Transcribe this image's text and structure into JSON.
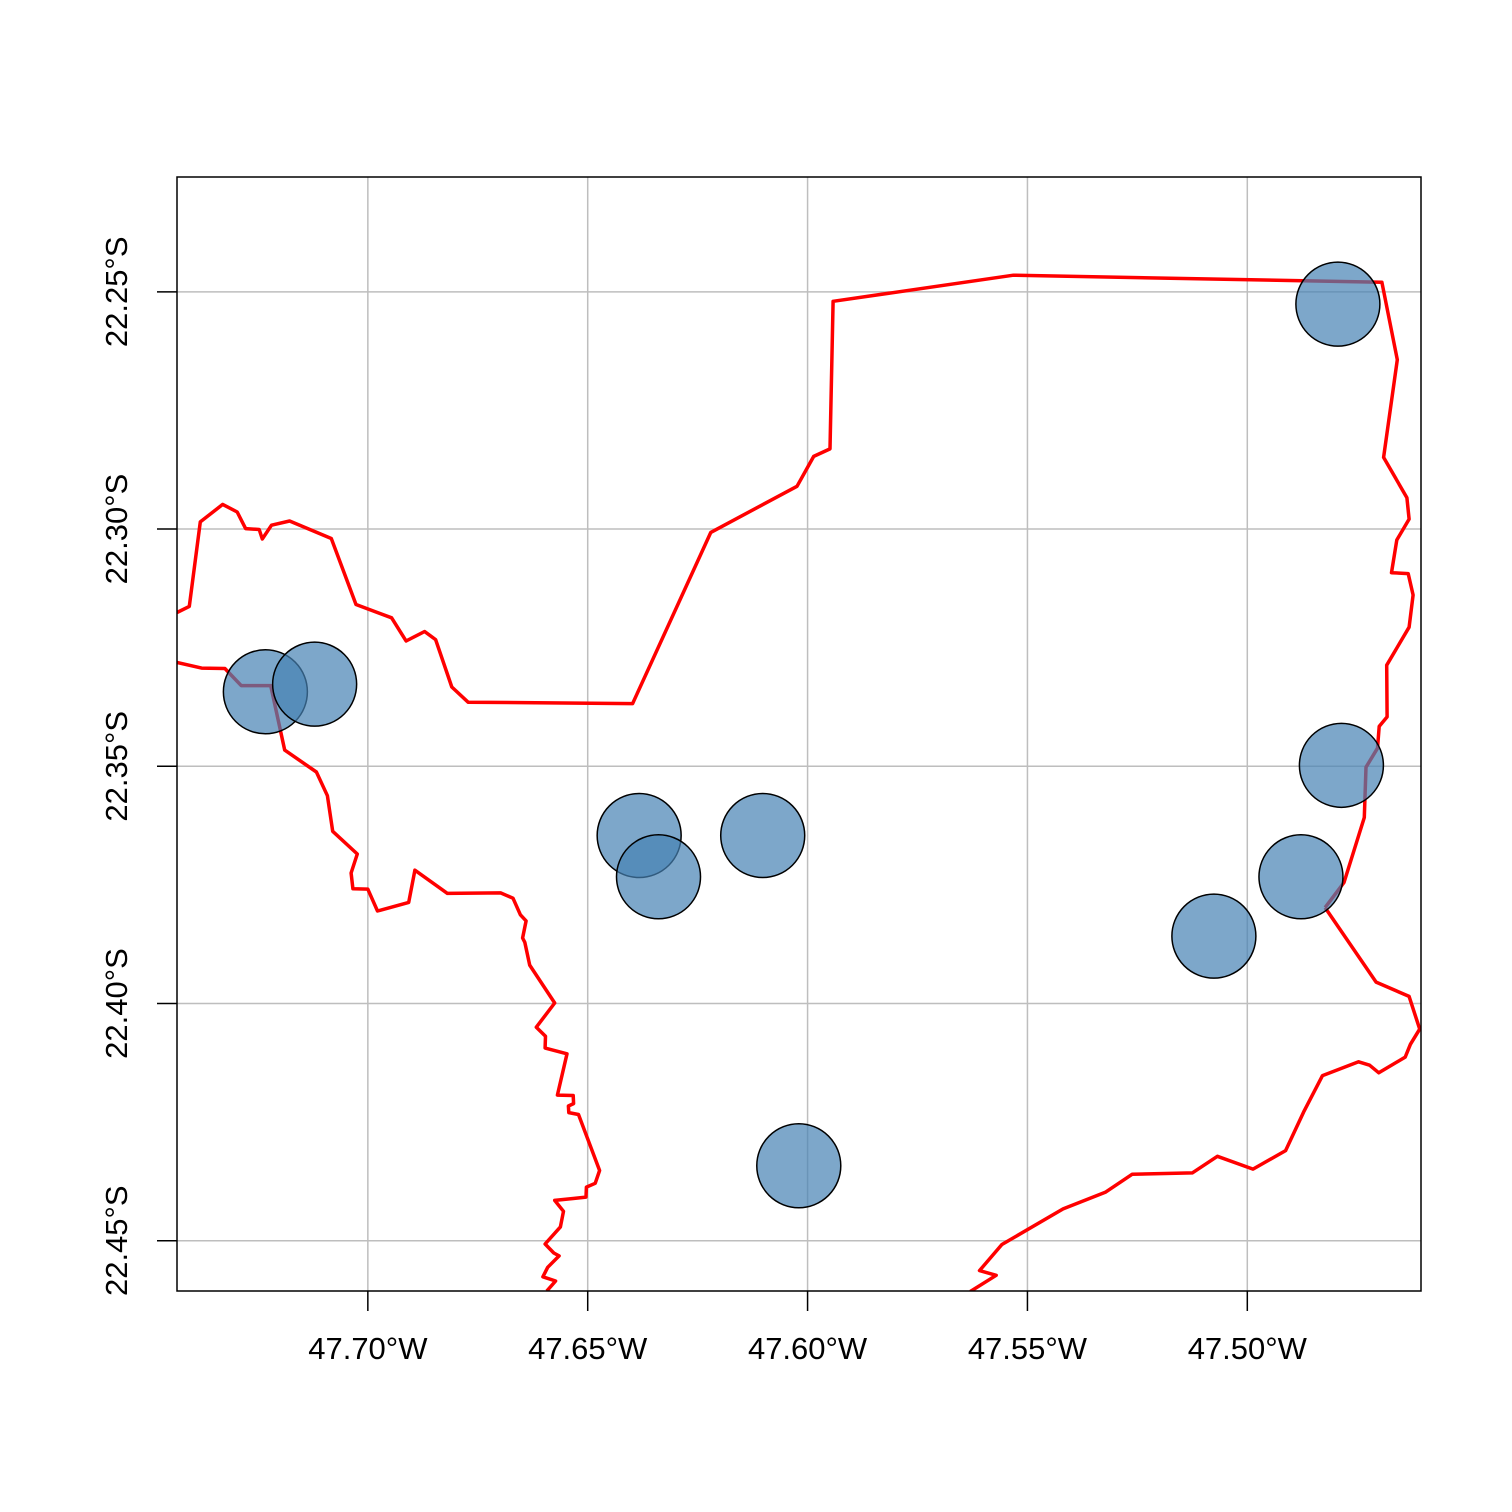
{
  "chart_data": {
    "type": "scatter",
    "title": "",
    "xlabel": "",
    "ylabel": "",
    "xlim": [
      -47.7434,
      -47.4605
    ],
    "ylim": [
      -22.4606,
      -22.2258
    ],
    "grid": true,
    "x_ticks": [
      {
        "value": -47.7,
        "label": "47.70°W"
      },
      {
        "value": -47.65,
        "label": "47.65°W"
      },
      {
        "value": -47.6,
        "label": "47.60°W"
      },
      {
        "value": -47.55,
        "label": "47.55°W"
      },
      {
        "value": -47.5,
        "label": "47.50°W"
      }
    ],
    "y_ticks": [
      {
        "value": -22.25,
        "label": "22.25°S"
      },
      {
        "value": -22.3,
        "label": "22.30°S"
      },
      {
        "value": -22.35,
        "label": "22.35°S"
      },
      {
        "value": -22.4,
        "label": "22.40°S"
      },
      {
        "value": -22.45,
        "label": "22.45°S"
      }
    ],
    "points": [
      {
        "lon": -47.7233,
        "lat": -22.3343
      },
      {
        "lon": -47.7121,
        "lat": -22.3327
      },
      {
        "lon": -47.6383,
        "lat": -22.3646
      },
      {
        "lon": -47.6339,
        "lat": -22.3733
      },
      {
        "lon": -47.6102,
        "lat": -22.3646
      },
      {
        "lon": -47.602,
        "lat": -22.4342
      },
      {
        "lon": -47.5076,
        "lat": -22.3858
      },
      {
        "lon": -47.4878,
        "lat": -22.3733
      },
      {
        "lon": -47.4786,
        "lat": -22.3498
      },
      {
        "lon": -47.4794,
        "lat": -22.2526
      }
    ],
    "point_fill": "#4682b4",
    "point_opacity": 0.7,
    "point_stroke": "#000000",
    "boundary_color": "#ff0000",
    "boundaries": [
      [
        [
          -47.7434,
          -22.3176
        ],
        [
          -47.7406,
          -22.3163
        ],
        [
          -47.7381,
          -22.2985
        ],
        [
          -47.733,
          -22.2948
        ],
        [
          -47.7297,
          -22.2964
        ],
        [
          -47.7278,
          -22.2999
        ],
        [
          -47.7247,
          -22.3001
        ],
        [
          -47.724,
          -22.3021
        ],
        [
          -47.7219,
          -22.2992
        ],
        [
          -47.7178,
          -22.2983
        ],
        [
          -47.7083,
          -22.302
        ],
        [
          -47.7027,
          -22.3159
        ],
        [
          -47.6946,
          -22.3187
        ],
        [
          -47.6913,
          -22.3236
        ],
        [
          -47.6871,
          -22.3216
        ],
        [
          -47.6846,
          -22.3233
        ],
        [
          -47.6809,
          -22.3333
        ],
        [
          -47.6772,
          -22.3365
        ],
        [
          -47.6398,
          -22.3368
        ],
        [
          -47.622,
          -22.3007
        ],
        [
          -47.6024,
          -22.291
        ],
        [
          -47.5986,
          -22.2847
        ],
        [
          -47.5949,
          -22.2831
        ],
        [
          -47.5942,
          -22.252
        ],
        [
          -47.5532,
          -22.2465
        ],
        [
          -47.4694,
          -22.248
        ],
        [
          -47.4659,
          -22.2643
        ],
        [
          -47.469,
          -22.2849
        ],
        [
          -47.4637,
          -22.2934
        ],
        [
          -47.4632,
          -22.2979
        ],
        [
          -47.466,
          -22.3023
        ],
        [
          -47.4672,
          -22.3092
        ],
        [
          -47.4634,
          -22.3094
        ],
        [
          -47.4623,
          -22.3139
        ],
        [
          -47.4632,
          -22.3207
        ],
        [
          -47.4683,
          -22.3287
        ],
        [
          -47.4682,
          -22.3396
        ],
        [
          -47.47,
          -22.3416
        ],
        [
          -47.4704,
          -22.3462
        ],
        [
          -47.473,
          -22.3502
        ],
        [
          -47.4734,
          -22.3608
        ],
        [
          -47.478,
          -22.3745
        ],
        [
          -47.4823,
          -22.3798
        ]
      ],
      [
        [
          -47.7434,
          -22.3281
        ],
        [
          -47.7378,
          -22.3293
        ],
        [
          -47.7325,
          -22.3294
        ],
        [
          -47.7288,
          -22.333
        ],
        [
          -47.7221,
          -22.333
        ],
        [
          -47.7189,
          -22.3466
        ],
        [
          -47.7117,
          -22.3512
        ],
        [
          -47.7092,
          -22.3562
        ],
        [
          -47.708,
          -22.3637
        ],
        [
          -47.7024,
          -22.3685
        ],
        [
          -47.7038,
          -22.3725
        ],
        [
          -47.7034,
          -22.3758
        ],
        [
          -47.7,
          -22.3759
        ],
        [
          -47.6978,
          -22.3805
        ],
        [
          -47.6907,
          -22.3787
        ],
        [
          -47.6893,
          -22.3719
        ],
        [
          -47.6819,
          -22.3768
        ],
        [
          -47.6698,
          -22.3767
        ],
        [
          -47.667,
          -22.3778
        ],
        [
          -47.6653,
          -22.3813
        ],
        [
          -47.664,
          -22.3826
        ],
        [
          -47.6648,
          -22.3862
        ],
        [
          -47.6643,
          -22.3871
        ],
        [
          -47.6632,
          -22.3919
        ],
        [
          -47.6575,
          -22.3999
        ],
        [
          -47.6617,
          -22.405
        ],
        [
          -47.6596,
          -22.4069
        ],
        [
          -47.6597,
          -22.4094
        ],
        [
          -47.6547,
          -22.4106
        ],
        [
          -47.6569,
          -22.4193
        ],
        [
          -47.6533,
          -22.4194
        ],
        [
          -47.6532,
          -22.4211
        ],
        [
          -47.6544,
          -22.4216
        ],
        [
          -47.6543,
          -22.423
        ],
        [
          -47.6521,
          -22.4234
        ],
        [
          -47.6473,
          -22.4352
        ],
        [
          -47.6483,
          -22.4379
        ],
        [
          -47.6503,
          -22.4387
        ],
        [
          -47.6504,
          -22.4408
        ],
        [
          -47.6533,
          -22.4411
        ],
        [
          -47.6575,
          -22.4415
        ],
        [
          -47.6555,
          -22.4438
        ],
        [
          -47.6562,
          -22.4471
        ],
        [
          -47.6597,
          -22.4507
        ],
        [
          -47.6577,
          -22.4526
        ],
        [
          -47.6565,
          -22.4532
        ],
        [
          -47.6591,
          -22.4556
        ],
        [
          -47.6602,
          -22.4576
        ],
        [
          -47.6573,
          -22.4585
        ],
        [
          -47.6593,
          -22.4606
        ]
      ],
      [
        [
          -47.4823,
          -22.3798
        ],
        [
          -47.4707,
          -22.3955
        ],
        [
          -47.4632,
          -22.3985
        ],
        [
          -47.4608,
          -22.4054
        ],
        [
          -47.4629,
          -22.4086
        ],
        [
          -47.4641,
          -22.4113
        ],
        [
          -47.4701,
          -22.4146
        ],
        [
          -47.4722,
          -22.413
        ],
        [
          -47.4747,
          -22.4123
        ],
        [
          -47.4829,
          -22.4152
        ],
        [
          -47.4872,
          -22.4229
        ],
        [
          -47.4913,
          -22.431
        ],
        [
          -47.4987,
          -22.4349
        ],
        [
          -47.5068,
          -22.4322
        ],
        [
          -47.5125,
          -22.4357
        ],
        [
          -47.5262,
          -22.436
        ],
        [
          -47.5323,
          -22.4398
        ],
        [
          -47.5419,
          -22.4433
        ],
        [
          -47.5558,
          -22.4508
        ],
        [
          -47.5609,
          -22.4563
        ],
        [
          -47.5571,
          -22.4573
        ],
        [
          -47.563,
          -22.4607
        ]
      ]
    ]
  }
}
